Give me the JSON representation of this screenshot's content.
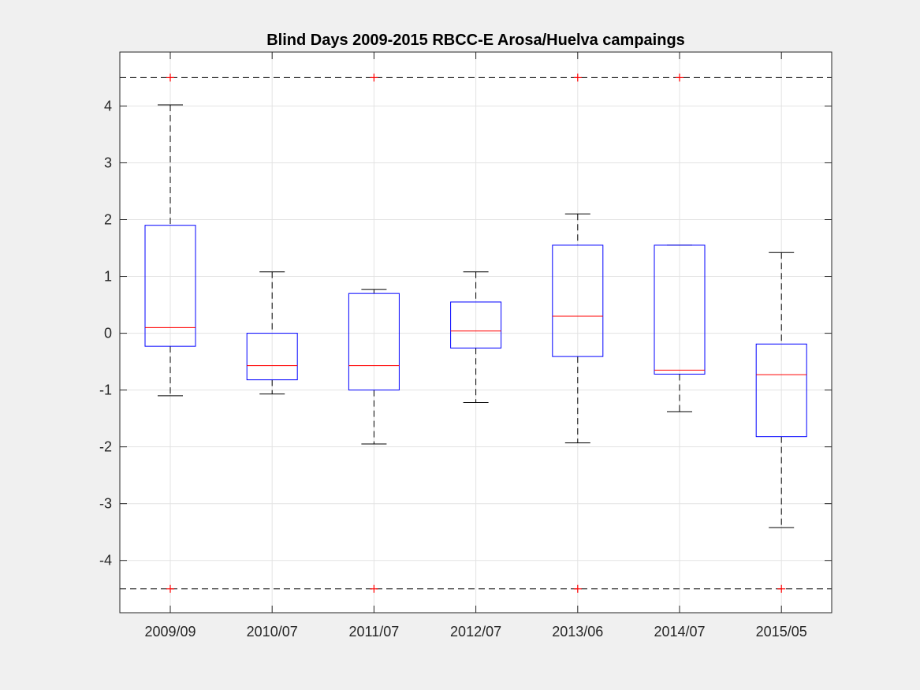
{
  "chart_data": {
    "type": "box",
    "title": "Blind Days 2009-2015 RBCC-E Arosa/Huelva campaings",
    "xlabel": "",
    "ylabel": "",
    "ylim": [
      -4.92,
      4.95
    ],
    "yticks": [
      -4,
      -3,
      -2,
      -1,
      0,
      1,
      2,
      3,
      4
    ],
    "grid": true,
    "reference_lines": [
      4.5,
      -4.5
    ],
    "categories": [
      "2009/09",
      "2010/07",
      "2011/07",
      "2012/07",
      "2013/06",
      "2014/07",
      "2015/05"
    ],
    "boxes": [
      {
        "category": "2009/09",
        "whisker_low": -1.1,
        "q1": -0.23,
        "median": 0.1,
        "q3": 1.9,
        "whisker_high": 4.02,
        "outliers": [
          4.5,
          -4.5
        ]
      },
      {
        "category": "2010/07",
        "whisker_low": -1.07,
        "q1": -0.82,
        "median": -0.57,
        "q3": 0.0,
        "whisker_high": 1.08,
        "outliers": []
      },
      {
        "category": "2011/07",
        "whisker_low": -1.95,
        "q1": -1.0,
        "median": -0.57,
        "q3": 0.7,
        "whisker_high": 0.77,
        "outliers": [
          4.5,
          -4.5
        ]
      },
      {
        "category": "2012/07",
        "whisker_low": -1.22,
        "q1": -0.26,
        "median": 0.04,
        "q3": 0.55,
        "whisker_high": 1.08,
        "outliers": []
      },
      {
        "category": "2013/06",
        "whisker_low": -1.93,
        "q1": -0.41,
        "median": 0.3,
        "q3": 1.55,
        "whisker_high": 2.1,
        "outliers": [
          4.5,
          -4.5
        ]
      },
      {
        "category": "2014/07",
        "whisker_low": -1.38,
        "q1": -0.72,
        "median": -0.65,
        "q3": 1.55,
        "whisker_high": 1.55,
        "outliers": [
          4.5
        ]
      },
      {
        "category": "2015/05",
        "whisker_low": -3.42,
        "q1": -1.82,
        "median": -0.73,
        "q3": -0.19,
        "whisker_high": 1.42,
        "outliers": [
          -4.5
        ]
      }
    ],
    "colors": {
      "box": "#0000ff",
      "median": "#ff0000",
      "outlier": "#ff0000",
      "whisker": "#000000",
      "grid": "#e3e3e3",
      "axes_bg": "#ffffff",
      "figure_bg": "#f0f0f0"
    }
  }
}
